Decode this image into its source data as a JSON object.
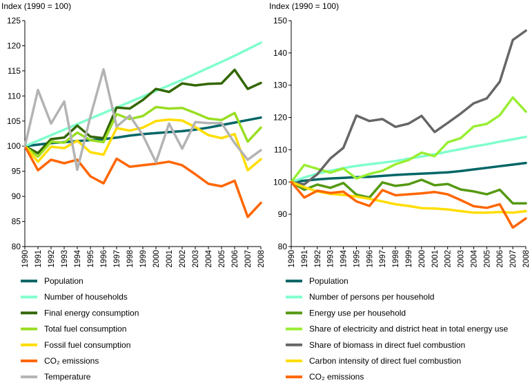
{
  "chart_data": [
    {
      "type": "line",
      "title": "",
      "xlabel": "",
      "ylabel": "Index (1990 = 100)",
      "ylim": [
        80,
        125
      ],
      "yticks": [
        80,
        85,
        90,
        95,
        100,
        105,
        110,
        115,
        120,
        125
      ],
      "grid": false,
      "legend_position": "bottom",
      "x": [
        "1990",
        "1991",
        "1992",
        "1993",
        "1994",
        "1995",
        "1996",
        "1997",
        "1998",
        "1999",
        "2000",
        "2001",
        "2002",
        "2003",
        "2004",
        "2005",
        "2006",
        "2007",
        "2008"
      ],
      "series": [
        {
          "name": "Population",
          "color": "#006666",
          "values": [
            100,
            100.3,
            100.6,
            100.8,
            101.0,
            101.2,
            101.4,
            101.7,
            102.1,
            102.4,
            102.6,
            102.8,
            103.0,
            103.3,
            103.7,
            104.2,
            104.7,
            105.2,
            105.7
          ]
        },
        {
          "name": "Number of households",
          "color": "#80ffcc",
          "values": [
            100,
            101.1,
            102.2,
            103.3,
            104.4,
            105.5,
            106.6,
            107.7,
            108.8,
            109.9,
            111.0,
            112.1,
            113.2,
            114.4,
            115.6,
            116.8,
            118.0,
            119.3,
            120.6
          ]
        },
        {
          "name": "Final energy consumption",
          "color": "#336600",
          "values": [
            100,
            98.6,
            101.4,
            101.7,
            104.1,
            101.9,
            101.6,
            107.7,
            107.5,
            109.2,
            111.4,
            110.8,
            112.5,
            112.1,
            112.4,
            112.5,
            115.2,
            111.4,
            112.6
          ]
        },
        {
          "name": "Total fuel consumption",
          "color": "#99dd22",
          "values": [
            100,
            97.9,
            100.9,
            100.7,
            102.7,
            101.2,
            100.8,
            106.4,
            105.4,
            106.0,
            107.8,
            107.5,
            107.6,
            106.6,
            105.5,
            105.2,
            106.6,
            100.9,
            103.7
          ]
        },
        {
          "name": "Fossil fuel consumption",
          "color": "#ffdd00",
          "values": [
            100,
            96.9,
            99.9,
            99.6,
            101.1,
            98.8,
            98.3,
            103.6,
            103.1,
            103.7,
            105.0,
            105.3,
            105.1,
            103.8,
            102.2,
            101.6,
            102.4,
            95.2,
            97.4
          ]
        },
        {
          "name": "CO₂ emissions",
          "color": "#ff6600",
          "values": [
            100,
            95.2,
            97.3,
            96.6,
            97.3,
            94.0,
            92.6,
            97.5,
            95.9,
            96.2,
            96.5,
            96.9,
            96.2,
            94.4,
            92.5,
            92.0,
            93.1,
            85.9,
            88.7
          ]
        },
        {
          "name": "Temperature",
          "color": "#b3b3b3",
          "values": [
            100,
            111.2,
            104.5,
            108.9,
            95.3,
            105.9,
            115.3,
            103.9,
            106.1,
            102.2,
            96.8,
            104.5,
            99.5,
            104.8,
            104.6,
            104.6,
            100.6,
            97.3,
            99.2
          ]
        }
      ]
    },
    {
      "type": "line",
      "title": "",
      "xlabel": "",
      "ylabel": "Index (1990 = 100)",
      "ylim": [
        80,
        150
      ],
      "yticks": [
        80,
        90,
        100,
        110,
        120,
        130,
        140,
        150
      ],
      "grid": false,
      "legend_position": "bottom",
      "x": [
        "1990",
        "1991",
        "1992",
        "1993",
        "1994",
        "1995",
        "1996",
        "1997",
        "1998",
        "1999",
        "2000",
        "2001",
        "2002",
        "2003",
        "2004",
        "2005",
        "2006",
        "2007",
        "2008"
      ],
      "series": [
        {
          "name": "Population",
          "color": "#006666",
          "values": [
            100,
            100.4,
            100.8,
            101.1,
            101.3,
            101.5,
            101.6,
            101.9,
            102.2,
            102.4,
            102.6,
            102.8,
            103.0,
            103.4,
            103.9,
            104.4,
            104.9,
            105.4,
            105.9
          ]
        },
        {
          "name": "Number of persons per household",
          "color": "#80ffcc",
          "values": [
            100,
            101.4,
            102.6,
            103.5,
            104.3,
            105.0,
            105.5,
            106.0,
            106.5,
            107.2,
            107.9,
            108.6,
            109.4,
            110.2,
            111.0,
            111.7,
            112.5,
            113.2,
            114.0
          ]
        },
        {
          "name": "Energy use per household",
          "color": "#559911",
          "values": [
            100,
            97.6,
            99.2,
            98.2,
            99.7,
            96.1,
            95.2,
            99.9,
            98.8,
            99.3,
            100.7,
            99.0,
            99.4,
            97.7,
            97.1,
            96.2,
            97.6,
            93.4,
            93.4
          ]
        },
        {
          "name": "Share of electricity and district heat in total energy use",
          "color": "#99ee33",
          "values": [
            100,
            105.3,
            104.1,
            102.9,
            104.2,
            101.1,
            102.5,
            103.5,
            105.5,
            106.8,
            109.1,
            108.0,
            112.3,
            113.6,
            117.2,
            118.0,
            120.7,
            126.2,
            121.8
          ]
        },
        {
          "name": "Share of biomass in direct fuel combustion",
          "color": "#666666",
          "values": [
            100,
            99.3,
            102.4,
            107.3,
            110.6,
            120.6,
            118.9,
            119.5,
            117.1,
            118.1,
            120.5,
            115.5,
            118.3,
            121.2,
            124.4,
            125.9,
            131.1,
            144.0,
            146.9
          ]
        },
        {
          "name": "Carbon intensity of direct fuel combustion",
          "color": "#ffdd00",
          "values": [
            100,
            98.4,
            97.1,
            96.3,
            96.0,
            95.5,
            94.8,
            94.0,
            93.1,
            92.6,
            91.9,
            91.8,
            91.5,
            91.0,
            90.5,
            90.5,
            90.7,
            90.5,
            91.0
          ]
        },
        {
          "name": "CO₂ emissions",
          "color": "#ff6600",
          "values": [
            100,
            95.2,
            97.3,
            96.6,
            97.0,
            94.0,
            92.6,
            97.5,
            95.9,
            96.2,
            96.5,
            96.9,
            96.2,
            94.4,
            92.5,
            92.0,
            93.1,
            85.9,
            88.7
          ]
        }
      ]
    }
  ]
}
